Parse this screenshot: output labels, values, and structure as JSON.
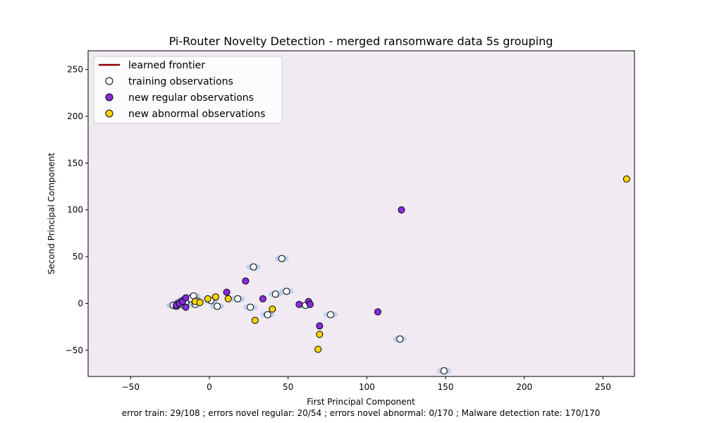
{
  "chart_data": {
    "type": "scatter",
    "title": "Pi-Router Novelty Detection - merged ransomware data 5s grouping",
    "xlabel": "First Principal Component",
    "ylabel": "Second Principal Component",
    "footer": "error train: 29/108 ; errors novel regular: 20/54 ; errors novel abnormal: 0/170 ; Malware detection rate: 170/170",
    "xlim": [
      -77,
      270
    ],
    "ylim": [
      -78,
      270
    ],
    "xticks": [
      -50,
      0,
      50,
      100,
      150,
      200,
      250
    ],
    "yticks": [
      -50,
      0,
      50,
      100,
      150,
      200,
      250
    ],
    "plot_background": "#f1eaf2",
    "grid": false,
    "legend_position": "top-left",
    "legend": [
      {
        "label": "learned frontier",
        "kind": "line",
        "color": "#8b0000"
      },
      {
        "label": "training observations",
        "kind": "marker",
        "color": "#ffffff"
      },
      {
        "label": "new regular observations",
        "kind": "marker",
        "color": "#8a2be2"
      },
      {
        "label": "new abnormal observations",
        "kind": "marker",
        "color": "#ffd700"
      }
    ],
    "frontier": {
      "color": "#8b0000",
      "fill_color": "#aac8ec",
      "regions": [
        {
          "cx": -22.5,
          "cy": -2.5,
          "rx": 2.5,
          "ry": 1.6
        },
        {
          "cx": -19.5,
          "cy": -0.5,
          "rx": 2.5,
          "ry": 1.6
        },
        {
          "cx": -16.5,
          "cy": 2.5,
          "rx": 2.5,
          "ry": 1.6
        },
        {
          "cx": -14.5,
          "cy": 5,
          "rx": 1.6,
          "ry": 1.2
        },
        {
          "cx": 36,
          "cy": -11.5,
          "rx": 1.4,
          "ry": 1.2
        }
      ]
    },
    "series": [
      {
        "name": "training observations",
        "color": "#ffffff",
        "points": [
          [
            -23,
            -2
          ],
          [
            -21,
            -3
          ],
          [
            -20,
            0
          ],
          [
            -18,
            2
          ],
          [
            -17,
            -1
          ],
          [
            -16,
            4
          ],
          [
            -15,
            1
          ],
          [
            -12,
            5
          ],
          [
            -10,
            8
          ],
          [
            -9,
            -1
          ],
          [
            -8,
            3
          ],
          [
            1,
            3
          ],
          [
            5,
            -3
          ],
          [
            18,
            5
          ],
          [
            26,
            -4
          ],
          [
            28,
            39
          ],
          [
            37,
            -12
          ],
          [
            42,
            10
          ],
          [
            46,
            48
          ],
          [
            49,
            13
          ],
          [
            61,
            -2
          ],
          [
            77,
            -12
          ],
          [
            121,
            -38
          ],
          [
            149,
            -72
          ]
        ]
      },
      {
        "name": "new regular observations",
        "color": "#8a2be2",
        "points": [
          [
            -21,
            -2
          ],
          [
            -19,
            0
          ],
          [
            -17,
            2
          ],
          [
            -15,
            6
          ],
          [
            -15,
            -4
          ],
          [
            11,
            12
          ],
          [
            23,
            24
          ],
          [
            34,
            5
          ],
          [
            57,
            -1
          ],
          [
            63,
            2
          ],
          [
            64,
            -1
          ],
          [
            70,
            -24
          ],
          [
            107,
            -9
          ],
          [
            122,
            100
          ]
        ]
      },
      {
        "name": "new abnormal observations",
        "color": "#ffd700",
        "points": [
          [
            -9,
            2
          ],
          [
            -6,
            1
          ],
          [
            -1,
            5
          ],
          [
            4,
            7
          ],
          [
            12,
            5
          ],
          [
            29,
            -18
          ],
          [
            40,
            -6
          ],
          [
            69,
            -49
          ],
          [
            70,
            -33
          ],
          [
            265,
            133
          ]
        ]
      }
    ]
  }
}
